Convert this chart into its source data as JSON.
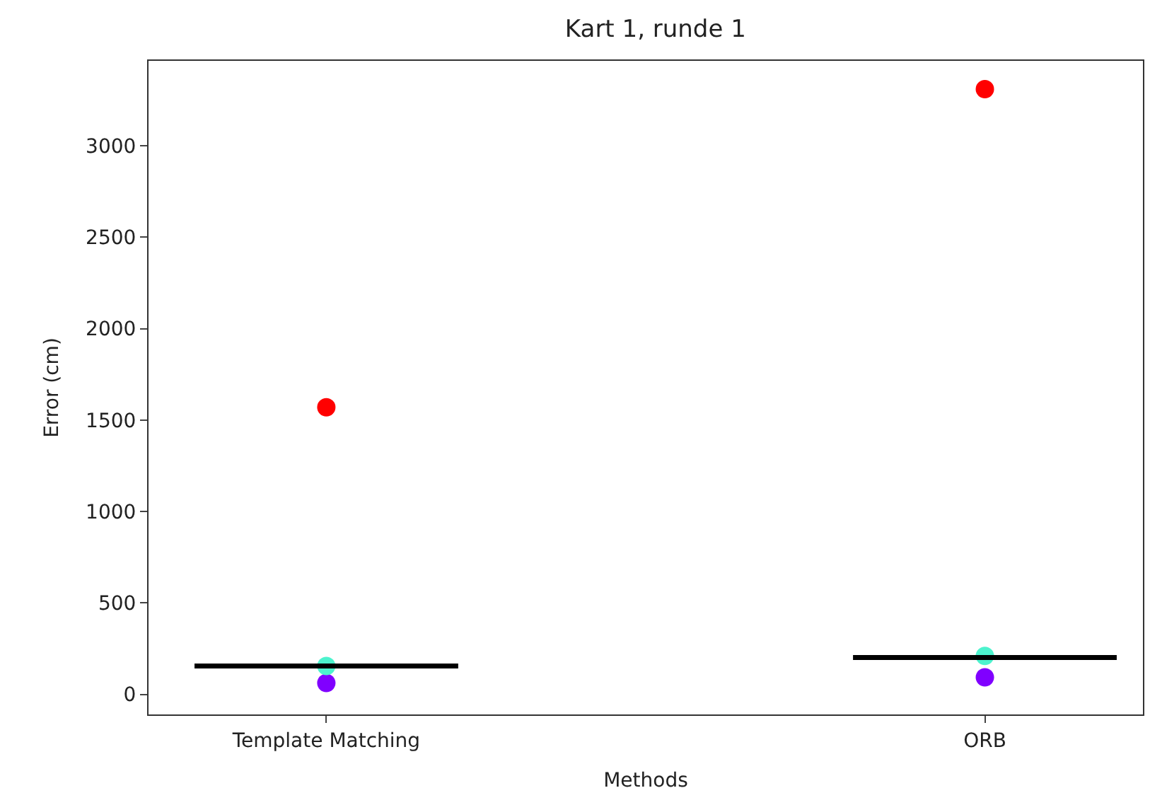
{
  "chart_data": {
    "type": "scatter",
    "title": "Kart 1, runde 1",
    "xlabel": "Methods",
    "ylabel": "Error (cm)",
    "categories": [
      "Template Matching",
      "ORB"
    ],
    "ylim": [
      -110,
      3465
    ],
    "yticks": [
      0,
      500,
      1000,
      1500,
      2000,
      2500,
      3000
    ],
    "legend": false,
    "marker": "circle",
    "series": [
      {
        "color": "#8000ff",
        "values": [
          62,
          93
        ]
      },
      {
        "color": "#4df3ce",
        "values": [
          155,
          210
        ]
      },
      {
        "color": "#ff0000",
        "values": [
          1570,
          3310
        ]
      },
      {
        "type": "box",
        "color": "#000000",
        "boxes": [
          {
            "low": 155,
            "q1": 155,
            "median": 155,
            "q3": 155,
            "high": 155
          },
          {
            "low": 201,
            "q1": 201,
            "median": 201,
            "q3": 201,
            "high": 201
          }
        ]
      }
    ]
  }
}
